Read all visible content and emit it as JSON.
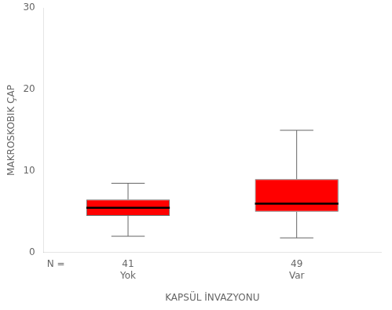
{
  "chart_data": {
    "type": "box",
    "xlabel": "KAPSÜL İNVAZYONU",
    "ylabel": "MAKROSKOBIK ÇAP",
    "categories": [
      "Yok",
      "Var"
    ],
    "values": [
      {
        "whisker_low": 2.0,
        "q1": 4.5,
        "median": 5.5,
        "q3": 6.5,
        "whisker_high": 8.5
      },
      {
        "whisker_low": 1.8,
        "q1": 5.0,
        "median": 6.0,
        "q3": 9.0,
        "whisker_high": 15.0
      }
    ],
    "count_label": "N =",
    "counts": [
      41,
      49
    ],
    "color": "#FF0000",
    "ylim": [
      0,
      30
    ],
    "yticks": [
      0,
      10,
      20,
      30
    ],
    "grid": false
  }
}
